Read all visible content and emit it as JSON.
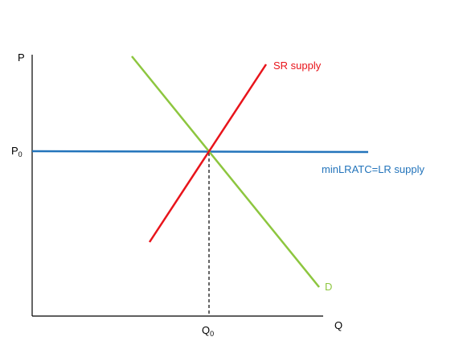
{
  "axes": {
    "y_label": "P",
    "x_label": "Q"
  },
  "ticks": {
    "p0": {
      "label": "P",
      "subscript": "0"
    },
    "q0": {
      "label": "Q",
      "subscript": "0"
    }
  },
  "curves": {
    "sr_supply": "SR supply",
    "lr_supply": "minLRATC=LR supply",
    "demand": "D"
  }
}
